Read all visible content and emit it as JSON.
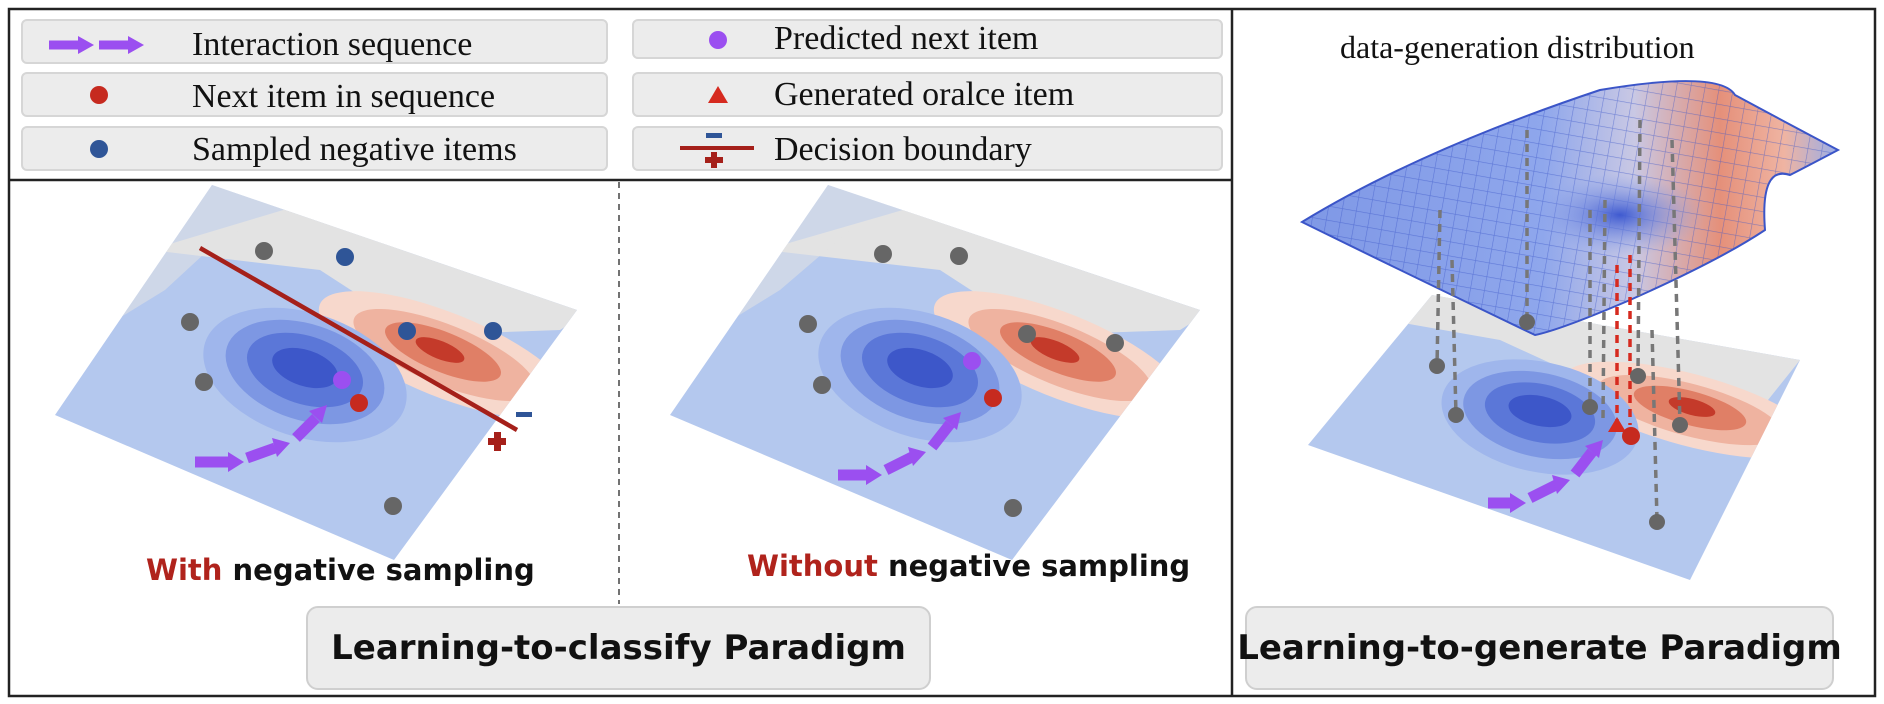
{
  "legend": {
    "interaction_sequence": "Interaction sequence",
    "next_item": "Next item in sequence",
    "negative_items": "Sampled negative items",
    "predicted_next": "Predicted next item",
    "generated_oracle": "Generated oralce item",
    "decision_boundary": "Decision boundary"
  },
  "panels": {
    "with_neg": {
      "prefix": "With",
      "suffix": " negative sampling"
    },
    "without_neg": {
      "prefix": "Without",
      "suffix": " negative sampling"
    },
    "distribution_title": "data-generation distribution"
  },
  "paradigms": {
    "classify": "Learning-to-classify Paradigm",
    "generate": "Learning-to-generate Paradigm"
  },
  "colors": {
    "purple": "#9b4ff0",
    "red_item": "#c62a1f",
    "blue_item": "#2f5597",
    "gray_item": "#666666",
    "boundary": "#a5201a",
    "bg_blue": "#b4c8ee",
    "bg_gray": "#e4e4e4"
  }
}
